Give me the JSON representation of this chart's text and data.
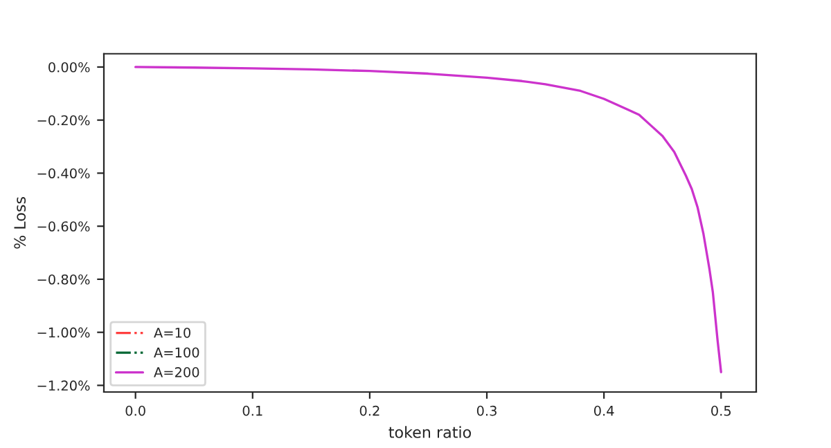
{
  "chart_data": {
    "type": "line",
    "xlabel": "token ratio",
    "ylabel": "% Loss",
    "x": [
      0,
      0.05,
      0.1,
      0.15,
      0.2,
      0.25,
      0.3,
      0.33,
      0.35,
      0.38,
      0.4,
      0.42,
      0.43,
      0.44,
      0.45,
      0.46,
      0.47,
      0.475,
      0.48,
      0.485,
      0.49,
      0.493,
      0.495,
      0.497,
      0.5
    ],
    "series": [
      {
        "name": "A=10",
        "color": "#ff4040",
        "line_style": "dashdot",
        "values": [
          null,
          null,
          null,
          null,
          null,
          null,
          null,
          null,
          null,
          null,
          null,
          null,
          null,
          null,
          null,
          null,
          null,
          null,
          null,
          null,
          null,
          null,
          null,
          null,
          null
        ]
      },
      {
        "name": "A=100",
        "color": "#006633",
        "line_style": "dashdot",
        "values": [
          null,
          null,
          null,
          null,
          null,
          null,
          null,
          null,
          null,
          null,
          null,
          null,
          null,
          null,
          null,
          null,
          null,
          null,
          null,
          null,
          null,
          null,
          null,
          null,
          null
        ]
      },
      {
        "name": "A=200",
        "color": "#cc33cc",
        "line_style": "solid",
        "values": [
          0,
          -0.002,
          -0.005,
          -0.009,
          -0.015,
          -0.025,
          -0.04,
          -0.053,
          -0.065,
          -0.09,
          -0.12,
          -0.16,
          -0.18,
          -0.22,
          -0.26,
          -0.32,
          -0.41,
          -0.46,
          -0.53,
          -0.63,
          -0.76,
          -0.85,
          -0.94,
          -1.03,
          -1.15
        ]
      }
    ],
    "xlim": [
      -0.027,
      0.53
    ],
    "xticks": [
      {
        "value": 0,
        "label": "0.0"
      },
      0.1,
      0.2,
      0.3,
      0.4,
      {
        "value": 0.5,
        "label": "0.5"
      }
    ],
    "ylim": [
      -1.225,
      0.05
    ],
    "yticks": [
      {
        "value": 0,
        "label": "0.00%"
      },
      {
        "value": -0.2,
        "label": "−0.20%"
      },
      {
        "value": -0.4,
        "label": "−0.40%"
      },
      {
        "value": -0.6,
        "label": "−0.60%"
      },
      {
        "value": -0.8,
        "label": "−0.80%"
      },
      {
        "value": -1.0,
        "label": "−1.00%"
      },
      {
        "value": -1.2,
        "label": "−1.20%"
      }
    ],
    "legend": "bottom left",
    "grid": false
  }
}
